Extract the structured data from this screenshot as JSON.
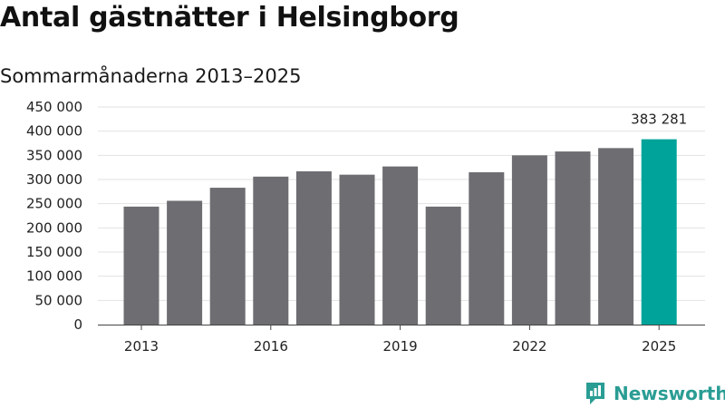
{
  "chart_data": {
    "type": "bar",
    "title": "Antal gästnätter i Helsingborg",
    "subtitle": "Sommarmånaderna 2013–2025",
    "categories": [
      "2013",
      "2014",
      "2015",
      "2016",
      "2017",
      "2018",
      "2019",
      "2020",
      "2021",
      "2022",
      "2023",
      "2024",
      "2025"
    ],
    "x_tick_labels": [
      "2013",
      "2016",
      "2019",
      "2022",
      "2025"
    ],
    "values": [
      244000,
      256000,
      283000,
      306000,
      317000,
      310000,
      327000,
      244000,
      315000,
      350000,
      358000,
      365000,
      383281
    ],
    "ylim": [
      0,
      450000
    ],
    "yticks": [
      0,
      50000,
      100000,
      150000,
      200000,
      250000,
      300000,
      350000,
      400000,
      450000
    ],
    "ytick_labels": [
      "0",
      "50 000",
      "100 000",
      "150 000",
      "200 000",
      "250 000",
      "300 000",
      "350 000",
      "400 000",
      "450 000"
    ],
    "highlight": {
      "category": "2025",
      "label": "383 281"
    },
    "grid": true,
    "xlabel": "",
    "ylabel": "",
    "colors": {
      "bar": "#6e6d72",
      "highlight": "#00a39a",
      "grid": "#e2e2e2",
      "axis": "#444444"
    }
  },
  "brand": {
    "name": "Newsworthy",
    "icon": "newsworthy-logo-icon",
    "color": "#2a9d94"
  }
}
